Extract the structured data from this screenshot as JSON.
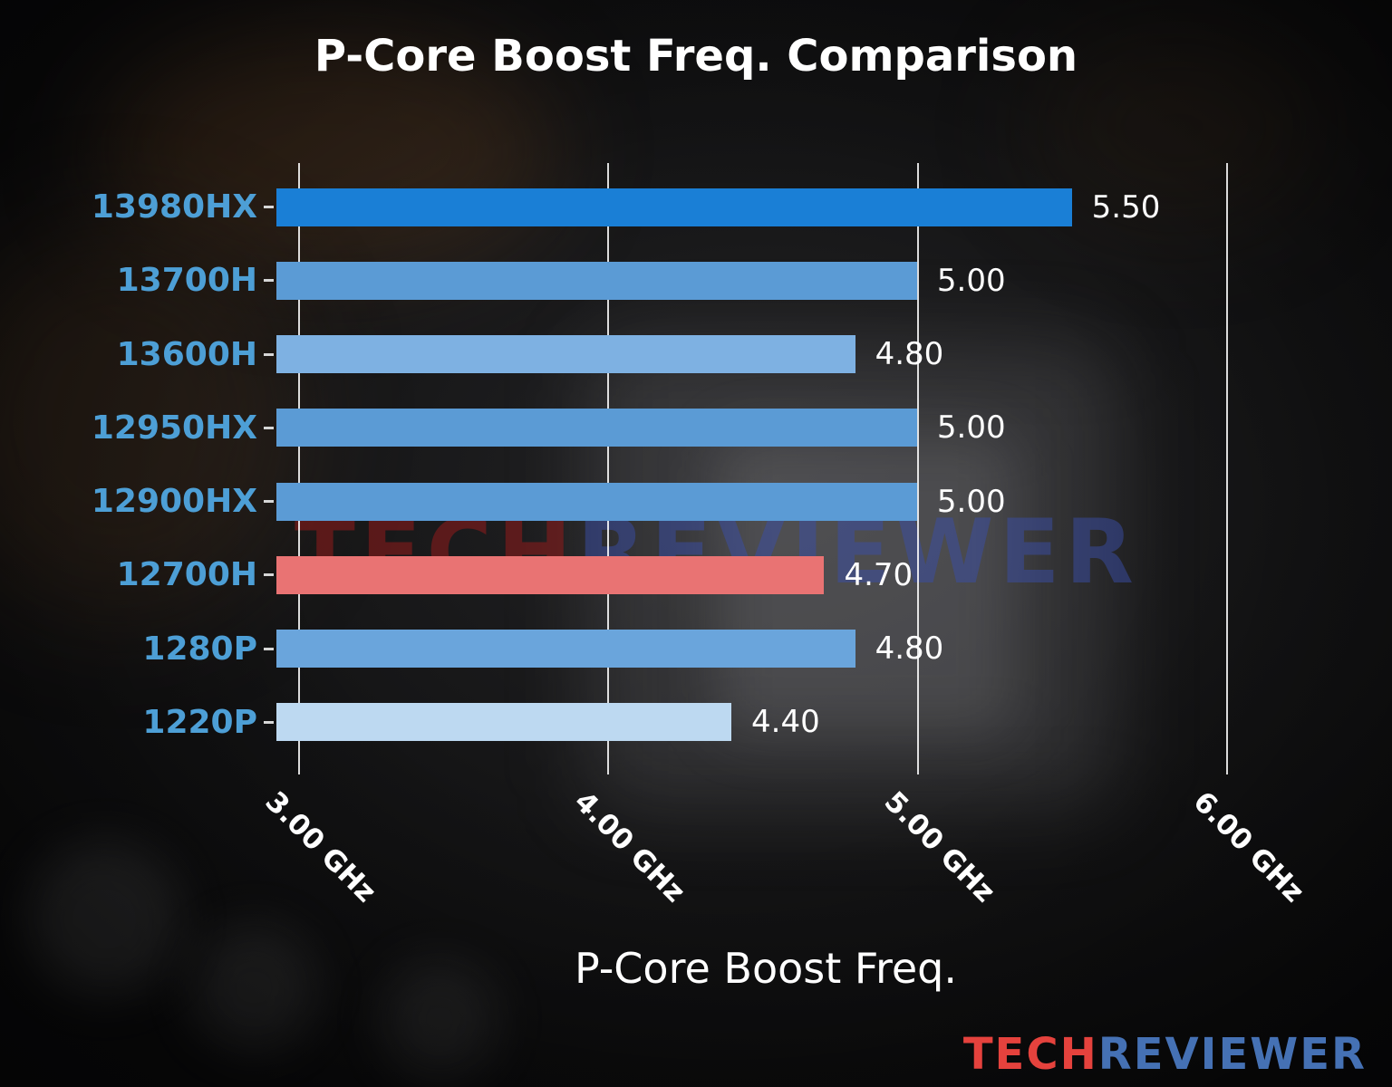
{
  "title": "P-Core Boost Freq. Comparison",
  "watermark": {
    "part1": "TECH",
    "part2": "REVIEWER",
    "color1": "rgba(145,28,28,0.55)",
    "color2": "rgba(58,78,168,0.50)"
  },
  "logo": {
    "part1": "TECH",
    "part2": "REVIEWER",
    "color1": "#e5423d",
    "color2": "#4571b4"
  },
  "chart_data": {
    "type": "bar",
    "orientation": "horizontal",
    "title": "P-Core Boost Freq. Comparison",
    "xlabel": "P-Core Boost Freq.",
    "ylabel": "",
    "categories": [
      "13980HX",
      "13700H",
      "13600H",
      "12950HX",
      "12900HX",
      "12700H",
      "1280P",
      "1220P"
    ],
    "values": [
      5.5,
      5.0,
      4.8,
      5.0,
      5.0,
      4.7,
      4.8,
      4.4
    ],
    "value_labels": [
      "5.50",
      "5.00",
      "4.80",
      "5.00",
      "5.00",
      "4.70",
      "4.80",
      "4.40"
    ],
    "bar_colors": [
      "#1a7fd6",
      "#5b9bd5",
      "#7eb1e2",
      "#5b9bd5",
      "#5b9bd5",
      "#e97373",
      "#6aa5dc",
      "#bdd9f1"
    ],
    "highlight_index": 5,
    "category_label_color": "#4d9fd6",
    "x_ticks": [
      {
        "value": 3,
        "label": "3.00 GHz"
      },
      {
        "value": 4,
        "label": "4.00 GHz"
      },
      {
        "value": 5,
        "label": "5.00 GHz"
      },
      {
        "value": 6,
        "label": "6.00 GHz"
      }
    ],
    "xlim": [
      2.93,
      6.4
    ],
    "grid": true,
    "legend": "none",
    "unit": "GHz"
  }
}
